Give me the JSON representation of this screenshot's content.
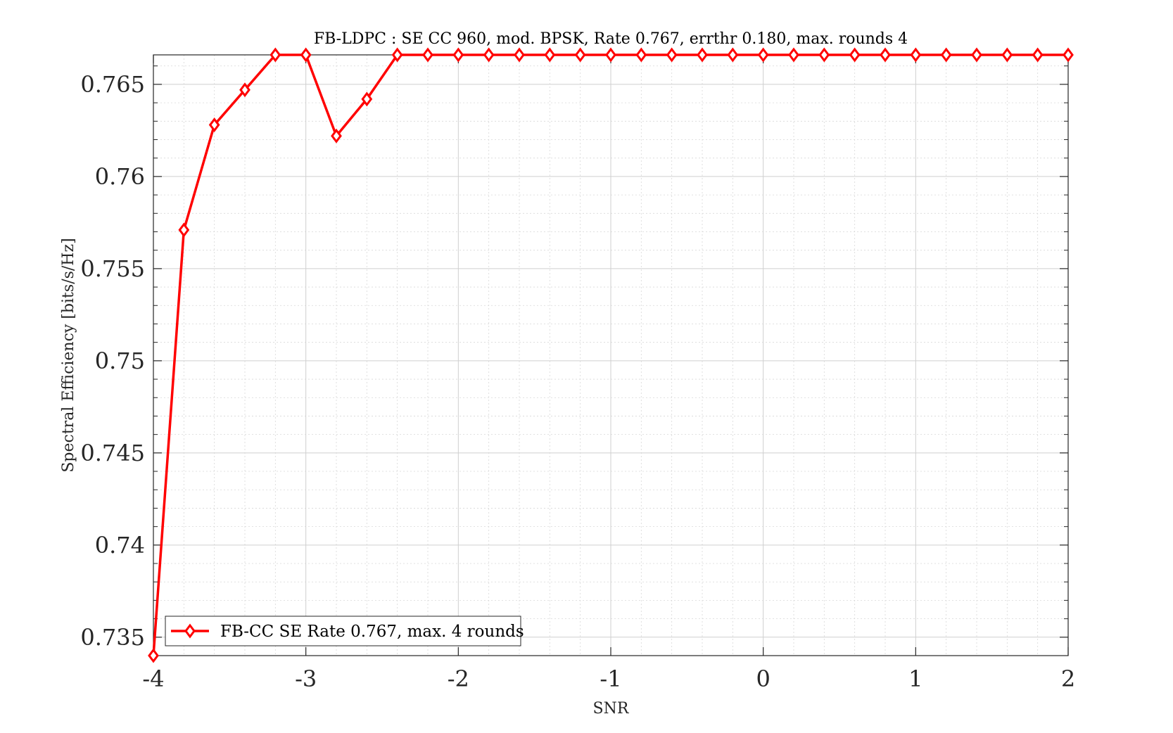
{
  "chart_data": {
    "type": "line",
    "title": "FB-LDPC : SE CC 960, mod. BPSK, Rate 0.767, errthr 0.180, max. rounds 4",
    "xlabel": "SNR",
    "ylabel": "Spectral Efficiency [bits/s/Hz]",
    "xlim": [
      -4,
      2
    ],
    "ylim": [
      0.734,
      0.7666
    ],
    "xticks": [
      -4,
      -3,
      -2,
      -1,
      0,
      1,
      2
    ],
    "xtick_labels": [
      "-4",
      "-3",
      "-2",
      "-1",
      "0",
      "1",
      "2"
    ],
    "yticks": [
      0.735,
      0.74,
      0.745,
      0.75,
      0.755,
      0.76,
      0.765
    ],
    "ytick_labels": [
      "0.735",
      "0.74",
      "0.745",
      "0.75",
      "0.755",
      "0.76",
      "0.765"
    ],
    "grid": true,
    "minor_grid": true,
    "legend_position": "bottom-left",
    "series": [
      {
        "name": "FB-CC SE Rate 0.767, max. 4 rounds",
        "color": "#ff0000",
        "marker": "diamond",
        "x": [
          -4,
          -3.8,
          -3.6,
          -3.4,
          -3.2,
          -3,
          -2.8,
          -2.6,
          -2.4,
          -2.2,
          -2,
          -1.8,
          -1.6,
          -1.4,
          -1.2,
          -1,
          -0.8,
          -0.6,
          -0.4,
          -0.2,
          0,
          0.2,
          0.4,
          0.6,
          0.8,
          1,
          1.2,
          1.4,
          1.6,
          1.8,
          2
        ],
        "y": [
          0.734,
          0.7571,
          0.7628,
          0.7647,
          0.7666,
          0.7666,
          0.7622,
          0.7642,
          0.7666,
          0.7666,
          0.7666,
          0.7666,
          0.7666,
          0.7666,
          0.7666,
          0.7666,
          0.7666,
          0.7666,
          0.7666,
          0.7666,
          0.7666,
          0.7666,
          0.7666,
          0.7666,
          0.7666,
          0.7666,
          0.7666,
          0.7666,
          0.7666,
          0.7666,
          0.7666
        ]
      }
    ]
  }
}
